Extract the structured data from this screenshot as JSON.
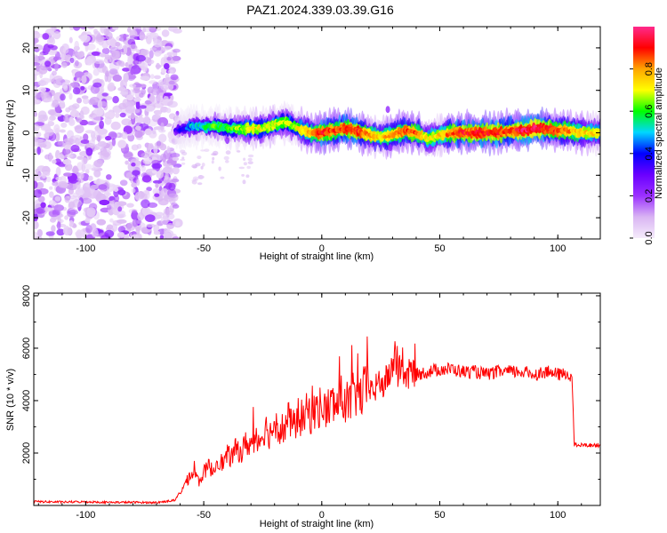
{
  "title": "PAZ1.2024.339.03.39.G16",
  "chart_data": [
    {
      "type": "heatmap",
      "xlabel": "Height of straight line (km)",
      "ylabel": "Frequency (Hz)",
      "xlim": [
        -122,
        118
      ],
      "ylim": [
        -25,
        25
      ],
      "xticks": [
        -100,
        -50,
        0,
        50,
        100
      ],
      "xtick_labels": [
        "-100",
        "-50",
        "0",
        "50",
        "100"
      ],
      "yticks": [
        -20,
        -10,
        0,
        10,
        20
      ],
      "ytick_labels": [
        "-20",
        "-10",
        "0",
        "10",
        "20"
      ],
      "colorbar": {
        "label": "Normalized spectral amplitude",
        "range": [
          0,
          1
        ],
        "ticks": [
          0,
          0.2,
          0.4,
          0.6,
          0.8
        ],
        "tick_labels": [
          "0.0",
          "0.2",
          "0.4",
          "0.6",
          "0.8"
        ],
        "colormap": [
          "#f5ecfb",
          "#d9b4f3",
          "#9b30ff",
          "#6a00ff",
          "#0000ff",
          "#00d7ff",
          "#00ff00",
          "#ffff00",
          "#ffa500",
          "#ff0000",
          "#ff2a8c"
        ]
      },
      "noise_region_x": [
        -122,
        -61
      ],
      "ridge": {
        "x": [
          -62,
          -55,
          -50,
          -45,
          -40,
          -35,
          -30,
          -25,
          -20,
          -15,
          -10,
          -5,
          0,
          5,
          10,
          15,
          20,
          25,
          30,
          35,
          40,
          45,
          50,
          55,
          60,
          65,
          70,
          75,
          80,
          85,
          90,
          95,
          100,
          105,
          110,
          118
        ],
        "y": [
          0.5,
          1.5,
          1.5,
          1.5,
          1.0,
          1.0,
          1.0,
          1.0,
          2.0,
          2.5,
          1.0,
          0.0,
          0.0,
          0.5,
          1.0,
          0.5,
          -0.5,
          -1.0,
          -0.5,
          0.5,
          0.0,
          -1.5,
          -0.5,
          0.0,
          0.0,
          0.0,
          0.0,
          0.0,
          0.5,
          0.5,
          1.0,
          1.0,
          0.5,
          0.5,
          0.0,
          0.0
        ],
        "amplitude": [
          0.3,
          0.5,
          0.55,
          0.6,
          0.6,
          0.65,
          0.7,
          0.7,
          0.7,
          0.65,
          0.7,
          0.8,
          0.9,
          0.85,
          0.9,
          0.9,
          0.8,
          0.75,
          0.8,
          0.85,
          0.85,
          0.7,
          0.75,
          0.85,
          0.9,
          0.9,
          0.9,
          0.9,
          0.85,
          0.95,
          0.95,
          0.9,
          0.85,
          0.8,
          0.75,
          0.75
        ]
      }
    },
    {
      "type": "line",
      "xlabel": "Height of straight line (km)",
      "ylabel": "SNR (10 * v/v)",
      "xlim": [
        -122,
        118
      ],
      "ylim": [
        0,
        8100
      ],
      "xticks": [
        -100,
        -50,
        0,
        50,
        100
      ],
      "xtick_labels": [
        "-100",
        "-50",
        "0",
        "50",
        "100"
      ],
      "yticks": [
        2000,
        4000,
        6000,
        8000
      ],
      "ytick_labels": [
        "2000",
        "4000",
        "6000",
        "8000"
      ],
      "series": [
        {
          "color": "#ff0000",
          "x": [
            -122,
            -110,
            -100,
            -90,
            -80,
            -70,
            -62,
            -60,
            -58,
            -56,
            -54,
            -52,
            -50,
            -48,
            -46,
            -44,
            -42,
            -40,
            -38,
            -36,
            -34,
            -32,
            -30,
            -28,
            -26,
            -24,
            -22,
            -20,
            -18,
            -16,
            -14,
            -12,
            -10,
            -8,
            -6,
            -4,
            -2,
            0,
            2,
            4,
            6,
            8,
            10,
            12,
            14,
            16,
            18,
            20,
            22,
            24,
            26,
            28,
            30,
            31,
            32,
            34,
            36,
            38,
            40,
            45,
            50,
            55,
            60,
            65,
            70,
            75,
            80,
            85,
            90,
            95,
            100,
            105,
            106,
            107,
            110,
            115,
            118
          ],
          "y": [
            150,
            130,
            140,
            120,
            120,
            110,
            200,
            500,
            800,
            1100,
            1250,
            900,
            1250,
            1500,
            1300,
            1800,
            1600,
            1900,
            1850,
            2200,
            2000,
            2400,
            2300,
            2700,
            2500,
            3000,
            2700,
            3200,
            3000,
            2900,
            3300,
            3000,
            3400,
            3300,
            3600,
            3400,
            3700,
            3800,
            3600,
            3900,
            3800,
            4100,
            4000,
            3900,
            4300,
            4100,
            4400,
            4500,
            4300,
            4700,
            4600,
            4900,
            5200,
            6000,
            5000,
            5300,
            4800,
            5200,
            5000,
            5100,
            5200,
            5200,
            5100,
            5100,
            5000,
            5100,
            5100,
            5100,
            5000,
            5100,
            5000,
            5000,
            4900,
            2300,
            2300,
            2300,
            2300
          ]
        }
      ]
    }
  ]
}
